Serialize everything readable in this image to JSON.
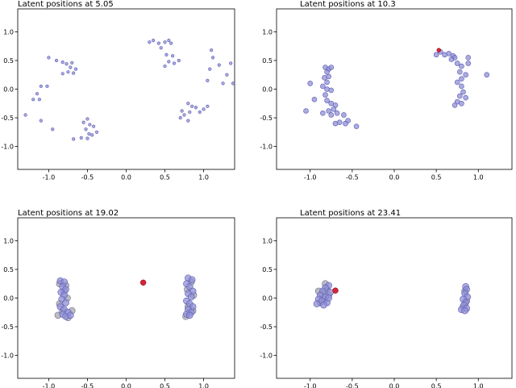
{
  "colors": {
    "point_fill": "#8f8fd6",
    "point_stroke": "#5b5bb5",
    "grey_fill": "#b3b3b3",
    "grey_stroke": "#6a6a9a",
    "highlight_fill": "#d6243a",
    "highlight_stroke": "#8a1020",
    "frame": "#000000"
  },
  "chart_data": [
    {
      "type": "scatter",
      "title": "Latent positions at 5.05",
      "xlim": [
        -1.4,
        1.4
      ],
      "ylim": [
        -1.4,
        1.4
      ],
      "xticks": [
        "-1.0",
        "-0.5",
        "0.0",
        "0.5",
        "1.0"
      ],
      "xtick_values": [
        -1.0,
        -0.5,
        0.0,
        0.5,
        1.0
      ],
      "yticks": [
        "1.0",
        "0.5",
        "0.0",
        "-0.5",
        "-1.0"
      ],
      "ytick_values": [
        1.0,
        0.5,
        0.0,
        -0.5,
        -1.0
      ],
      "marker_size": "small",
      "points": [
        [
          -0.55,
          -0.58
        ],
        [
          -0.5,
          -0.52
        ],
        [
          -0.47,
          -0.62
        ],
        [
          -0.42,
          -0.65
        ],
        [
          -0.52,
          -0.7
        ],
        [
          -0.48,
          -0.78
        ],
        [
          -0.44,
          -0.8
        ],
        [
          -0.38,
          -0.75
        ],
        [
          -0.5,
          -0.86
        ],
        [
          -0.58,
          -0.85
        ],
        [
          -0.68,
          -0.87
        ],
        [
          -0.9,
          0.5
        ],
        [
          -0.82,
          0.47
        ],
        [
          -0.77,
          0.44
        ],
        [
          -0.7,
          0.46
        ],
        [
          -0.72,
          0.38
        ],
        [
          -0.65,
          0.35
        ],
        [
          -0.75,
          0.3
        ],
        [
          -0.82,
          0.27
        ],
        [
          -0.68,
          0.28
        ],
        [
          -1.0,
          0.55
        ],
        [
          -1.1,
          0.05
        ],
        [
          -1.15,
          -0.08
        ],
        [
          -1.2,
          -0.18
        ],
        [
          -1.12,
          -0.18
        ],
        [
          -1.02,
          0.05
        ],
        [
          -1.3,
          -0.45
        ],
        [
          -1.1,
          -0.55
        ],
        [
          -0.95,
          -0.7
        ],
        [
          0.3,
          0.82
        ],
        [
          0.35,
          0.85
        ],
        [
          0.42,
          0.8
        ],
        [
          0.5,
          0.82
        ],
        [
          0.55,
          0.85
        ],
        [
          0.58,
          0.8
        ],
        [
          0.45,
          0.72
        ],
        [
          0.52,
          0.6
        ],
        [
          0.6,
          0.58
        ],
        [
          0.55,
          0.48
        ],
        [
          0.62,
          0.45
        ],
        [
          0.68,
          0.5
        ],
        [
          0.5,
          0.4
        ],
        [
          1.1,
          0.68
        ],
        [
          1.12,
          0.55
        ],
        [
          1.2,
          0.42
        ],
        [
          1.35,
          0.45
        ],
        [
          1.3,
          0.25
        ],
        [
          1.25,
          0.1
        ],
        [
          1.38,
          0.1
        ],
        [
          1.08,
          0.35
        ],
        [
          1.05,
          0.15
        ],
        [
          0.8,
          -0.25
        ],
        [
          0.85,
          -0.3
        ],
        [
          0.9,
          -0.32
        ],
        [
          0.82,
          -0.4
        ],
        [
          0.75,
          -0.45
        ],
        [
          0.7,
          -0.5
        ],
        [
          0.8,
          -0.55
        ],
        [
          0.95,
          -0.4
        ],
        [
          1.0,
          -0.35
        ],
        [
          1.05,
          -0.3
        ],
        [
          0.72,
          -0.38
        ]
      ],
      "grey_points": [],
      "highlight_points": []
    },
    {
      "type": "scatter",
      "title": "Latent positions at 10.3",
      "xlim": [
        -1.4,
        1.4
      ],
      "ylim": [
        -1.4,
        1.4
      ],
      "xticks": [
        "-1.0",
        "-0.5",
        "0.0",
        "0.5",
        "1.0"
      ],
      "xtick_values": [
        -1.0,
        -0.5,
        0.0,
        0.5,
        1.0
      ],
      "yticks": [
        "1.0",
        "0.5",
        "0.0",
        "-0.5",
        "-1.0"
      ],
      "ytick_values": [
        1.0,
        0.5,
        0.0,
        -0.5,
        -1.0
      ],
      "marker_size": "medium",
      "points": [
        [
          -0.82,
          0.38
        ],
        [
          -0.78,
          0.35
        ],
        [
          -0.75,
          0.38
        ],
        [
          -0.8,
          0.3
        ],
        [
          -0.83,
          0.2
        ],
        [
          -0.78,
          0.22
        ],
        [
          -0.8,
          0.12
        ],
        [
          -0.85,
          0.05
        ],
        [
          -0.8,
          0.0
        ],
        [
          -0.75,
          -0.02
        ],
        [
          -0.82,
          -0.1
        ],
        [
          -0.8,
          -0.2
        ],
        [
          -0.75,
          -0.25
        ],
        [
          -0.7,
          -0.28
        ],
        [
          -0.72,
          -0.35
        ],
        [
          -0.78,
          -0.38
        ],
        [
          -0.85,
          -0.42
        ],
        [
          -0.75,
          -0.45
        ],
        [
          -0.68,
          -0.42
        ],
        [
          -0.6,
          -0.45
        ],
        [
          -0.55,
          -0.55
        ],
        [
          -0.58,
          -0.6
        ],
        [
          -0.65,
          -0.58
        ],
        [
          -0.7,
          -0.6
        ],
        [
          -0.45,
          -0.65
        ],
        [
          -0.95,
          -0.18
        ],
        [
          -1.05,
          -0.38
        ],
        [
          -1.0,
          0.1
        ],
        [
          0.55,
          0.65
        ],
        [
          0.6,
          0.6
        ],
        [
          0.65,
          0.62
        ],
        [
          0.7,
          0.58
        ],
        [
          0.72,
          0.55
        ],
        [
          0.68,
          0.52
        ],
        [
          0.75,
          0.45
        ],
        [
          0.8,
          0.4
        ],
        [
          0.78,
          0.3
        ],
        [
          0.85,
          0.25
        ],
        [
          0.8,
          0.18
        ],
        [
          0.75,
          0.12
        ],
        [
          0.8,
          0.05
        ],
        [
          0.82,
          -0.05
        ],
        [
          0.78,
          -0.12
        ],
        [
          0.85,
          -0.15
        ],
        [
          0.75,
          -0.22
        ],
        [
          0.8,
          -0.25
        ],
        [
          0.72,
          -0.28
        ],
        [
          0.88,
          0.45
        ],
        [
          1.1,
          0.25
        ],
        [
          0.88,
          0.55
        ],
        [
          0.5,
          0.6
        ]
      ],
      "grey_points": [],
      "highlight_points": [
        [
          0.53,
          0.68
        ]
      ]
    },
    {
      "type": "scatter",
      "title": "Latent positions at 19.02",
      "xlim": [
        -1.4,
        1.4
      ],
      "ylim": [
        -1.4,
        1.4
      ],
      "xticks": [
        "-1.0",
        "-0.5",
        "0.0",
        "0.5",
        "1.0"
      ],
      "xtick_values": [
        -1.0,
        -0.5,
        0.0,
        0.5,
        1.0
      ],
      "yticks": [
        "1.0",
        "0.5",
        "0.0",
        "-0.5",
        "-1.0"
      ],
      "ytick_values": [
        1.0,
        0.5,
        0.0,
        -0.5,
        -1.0
      ],
      "marker_size": "large",
      "points": [
        [
          -0.85,
          0.3
        ],
        [
          -0.8,
          0.28
        ],
        [
          -0.82,
          0.2
        ],
        [
          -0.78,
          0.15
        ],
        [
          -0.84,
          0.1
        ],
        [
          -0.8,
          0.05
        ],
        [
          -0.83,
          -0.02
        ],
        [
          -0.78,
          -0.08
        ],
        [
          -0.85,
          -0.15
        ],
        [
          -0.8,
          -0.2
        ],
        [
          -0.75,
          -0.25
        ],
        [
          -0.82,
          -0.28
        ],
        [
          -0.78,
          -0.32
        ],
        [
          -0.72,
          -0.3
        ],
        [
          0.8,
          0.35
        ],
        [
          0.85,
          0.32
        ],
        [
          0.78,
          0.25
        ],
        [
          0.82,
          0.2
        ],
        [
          0.86,
          0.12
        ],
        [
          0.8,
          0.08
        ],
        [
          0.84,
          0.02
        ],
        [
          0.78,
          -0.05
        ],
        [
          0.82,
          -0.1
        ],
        [
          0.86,
          -0.15
        ],
        [
          0.8,
          -0.2
        ],
        [
          0.84,
          -0.25
        ],
        [
          0.78,
          -0.28
        ],
        [
          0.82,
          -0.3
        ]
      ],
      "grey_points": [
        [
          -0.86,
          0.25
        ],
        [
          -0.78,
          0.22
        ],
        [
          -0.8,
          0.12
        ],
        [
          -0.76,
          0.0
        ],
        [
          -0.86,
          -0.1
        ],
        [
          -0.82,
          -0.22
        ],
        [
          -0.75,
          -0.34
        ],
        [
          -0.88,
          -0.3
        ],
        [
          -0.7,
          -0.22
        ],
        [
          0.84,
          0.28
        ],
        [
          0.79,
          0.15
        ],
        [
          0.87,
          0.05
        ],
        [
          0.8,
          -0.15
        ],
        [
          0.86,
          -0.22
        ],
        [
          0.77,
          -0.32
        ]
      ],
      "highlight_points": [
        [
          0.22,
          0.27
        ]
      ]
    },
    {
      "type": "scatter",
      "title": "Latent positions at 23.41",
      "xlim": [
        -1.4,
        1.4
      ],
      "ylim": [
        -1.4,
        1.4
      ],
      "xticks": [
        "-1.0",
        "-0.5",
        "0.0",
        "0.5",
        "1.0"
      ],
      "xtick_values": [
        -1.0,
        -0.5,
        0.0,
        0.5,
        1.0
      ],
      "yticks": [
        "1.0",
        "0.5",
        "0.0",
        "-0.5",
        "-1.0"
      ],
      "ytick_values": [
        1.0,
        0.5,
        0.0,
        -0.5,
        -1.0
      ],
      "marker_size": "large",
      "points": [
        [
          -0.78,
          0.22
        ],
        [
          -0.82,
          0.18
        ],
        [
          -0.85,
          0.12
        ],
        [
          -0.88,
          0.05
        ],
        [
          -0.82,
          0.02
        ],
        [
          -0.9,
          -0.02
        ],
        [
          -0.86,
          -0.05
        ],
        [
          -0.92,
          -0.1
        ],
        [
          -0.8,
          -0.08
        ],
        [
          -0.76,
          0.1
        ],
        [
          -0.78,
          0.0
        ],
        [
          -0.84,
          -0.12
        ],
        [
          0.85,
          0.2
        ],
        [
          0.86,
          0.15
        ],
        [
          0.84,
          0.08
        ],
        [
          0.87,
          0.02
        ],
        [
          0.82,
          -0.02
        ],
        [
          0.85,
          -0.08
        ],
        [
          0.83,
          -0.12
        ],
        [
          0.86,
          -0.18
        ],
        [
          0.8,
          -0.2
        ],
        [
          0.84,
          -0.22
        ]
      ],
      "grey_points": [
        [
          -0.8,
          0.15
        ],
        [
          -0.86,
          0.08
        ],
        [
          -0.83,
          -0.02
        ],
        [
          -0.88,
          -0.08
        ],
        [
          -0.78,
          0.05
        ],
        [
          -0.82,
          0.25
        ],
        [
          -0.9,
          0.12
        ],
        [
          0.84,
          0.12
        ],
        [
          0.86,
          -0.05
        ],
        [
          0.82,
          -0.15
        ]
      ],
      "highlight_points": [
        [
          -0.7,
          0.13
        ]
      ]
    }
  ]
}
